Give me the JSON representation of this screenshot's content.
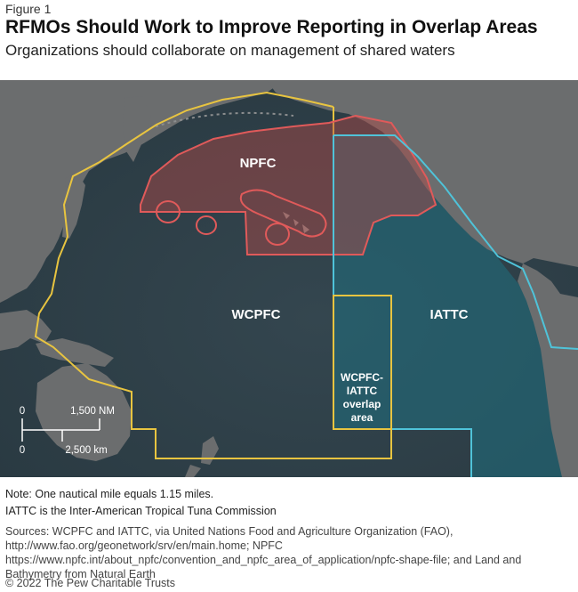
{
  "figure_label": "Figure 1",
  "title": "RFMOs Should Work to Improve Reporting in Overlap Areas",
  "subtitle": "Organizations should collaborate on management of shared waters",
  "map": {
    "labels": {
      "npfc": "NPFC",
      "wcpfc": "WCPFC",
      "iattc": "IATTC",
      "overlap_line1": "WCPFC-",
      "overlap_line2": "IATTC",
      "overlap_line3": "overlap",
      "overlap_line4": "area"
    },
    "scale": {
      "nm_zero": "0",
      "nm_label": "1,500 NM",
      "km_zero": "0",
      "km_label": "2,500 km"
    },
    "colors": {
      "ocean": "#2f3f47",
      "land": "#6d6f70",
      "npfc": "#e05a5a",
      "wcpfc": "#e8c440",
      "iattc": "#4fc3d9"
    }
  },
  "notes": {
    "line1": "Note: One nautical mile equals 1.15 miles.",
    "line2": "IATTC is the Inter-American Tropical Tuna Commission"
  },
  "sources": "Sources: WCPFC and IATTC, via United Nations Food and Agriculture Organization (FAO), http://www.fao.org/geonetwork/srv/en/main.home; NPFC https://www.npfc.int/about_npfc/convention_and_npfc_area_of_application/npfc-shape-file; and Land and Bathymetry from Natural Earth",
  "copyright": "© 2022 The Pew Charitable Trusts"
}
